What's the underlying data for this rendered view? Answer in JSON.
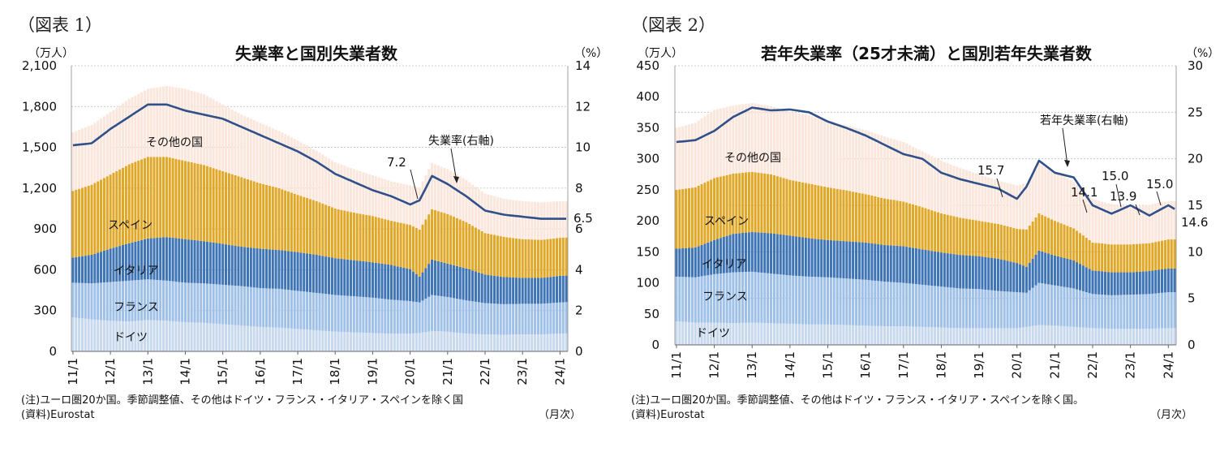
{
  "chart_data": [
    {
      "type": "bar",
      "stacked": true,
      "figure_label": "（図表 1）",
      "title": "失業率と国別失業者数",
      "left_unit": "（万人）",
      "right_unit": "（%）",
      "x_unit": "（月次）",
      "x_tick_labels": [
        "11/1",
        "12/1",
        "13/1",
        "14/1",
        "15/1",
        "16/1",
        "17/1",
        "18/1",
        "19/1",
        "20/1",
        "21/1",
        "22/1",
        "23/1",
        "24/1"
      ],
      "ylim": [
        0,
        2100
      ],
      "y_ticks": [
        0,
        300,
        600,
        900,
        1200,
        1500,
        1800,
        2100
      ],
      "y_tick_labels": [
        "0",
        "300",
        "600",
        "900",
        "1,200",
        "1,500",
        "1,800",
        "2,100"
      ],
      "y2lim": [
        0,
        14
      ],
      "y2_ticks": [
        0,
        2,
        4,
        6,
        8,
        10,
        12,
        14
      ],
      "y2_tick_labels": [
        "0",
        "2",
        "4",
        "6",
        "8",
        "10",
        "12",
        "14"
      ],
      "series_labels": [
        "ドイツ",
        "フランス",
        "イタリア",
        "スペイン",
        "その他の国"
      ],
      "colors": [
        "#c8d9ee",
        "#9fc1e8",
        "#3f74b5",
        "#e0a829",
        "#fbe6dc"
      ],
      "line_color": "#30508a",
      "line_label": "失業率(右軸)",
      "point_labels": [
        "7.2",
        "6.5"
      ],
      "keys": {
        "x": [
          "2011-01",
          "2011-07",
          "2012-01",
          "2012-07",
          "2013-01",
          "2013-07",
          "2014-01",
          "2014-07",
          "2015-01",
          "2015-07",
          "2016-01",
          "2016-07",
          "2017-01",
          "2017-07",
          "2018-01",
          "2018-07",
          "2019-01",
          "2019-07",
          "2020-01",
          "2020-04",
          "2020-08",
          "2021-01",
          "2021-07",
          "2022-01",
          "2022-07",
          "2023-01",
          "2023-07",
          "2024-01",
          "2024-03"
        ],
        "germany": [
          250,
          235,
          225,
          220,
          230,
          225,
          215,
          210,
          200,
          190,
          180,
          175,
          165,
          155,
          145,
          140,
          135,
          130,
          130,
          135,
          150,
          145,
          130,
          125,
          122,
          125,
          125,
          130,
          132
        ],
        "france": [
          255,
          265,
          285,
          300,
          300,
          295,
          290,
          290,
          290,
          290,
          285,
          285,
          280,
          275,
          270,
          265,
          260,
          250,
          240,
          225,
          265,
          255,
          245,
          230,
          225,
          225,
          225,
          230,
          230
        ],
        "italy": [
          185,
          210,
          245,
          275,
          300,
          320,
          320,
          310,
          300,
          290,
          290,
          285,
          285,
          280,
          270,
          265,
          260,
          255,
          235,
          190,
          260,
          245,
          235,
          210,
          200,
          190,
          190,
          195,
          195
        ],
        "spain": [
          490,
          515,
          545,
          580,
          600,
          590,
          575,
          560,
          535,
          510,
          480,
          455,
          420,
          395,
          365,
          350,
          340,
          325,
          325,
          345,
          370,
          365,
          340,
          305,
          295,
          285,
          280,
          280,
          280
        ],
        "other": [
          430,
          440,
          460,
          480,
          500,
          520,
          530,
          520,
          490,
          460,
          445,
          420,
          400,
          370,
          340,
          320,
          300,
          290,
          290,
          310,
          340,
          330,
          310,
          290,
          280,
          280,
          275,
          270,
          265
        ],
        "rate": [
          10.1,
          10.2,
          10.9,
          11.5,
          12.1,
          12.1,
          11.8,
          11.6,
          11.4,
          11.0,
          10.6,
          10.2,
          9.8,
          9.3,
          8.7,
          8.3,
          7.9,
          7.6,
          7.2,
          7.4,
          8.6,
          8.2,
          7.6,
          6.9,
          6.7,
          6.6,
          6.5,
          6.5,
          6.5
        ]
      }
    },
    {
      "type": "bar",
      "stacked": true,
      "figure_label": "（図表 2）",
      "title": "若年失業率（25才未満）と国別若年失業者数",
      "left_unit": "（万人）",
      "right_unit": "（%）",
      "x_unit": "（月次）",
      "x_tick_labels": [
        "11/1",
        "12/1",
        "13/1",
        "14/1",
        "15/1",
        "16/1",
        "17/1",
        "18/1",
        "19/1",
        "20/1",
        "21/1",
        "22/1",
        "23/1",
        "24/1"
      ],
      "ylim": [
        0,
        450
      ],
      "y_ticks": [
        0,
        50,
        100,
        150,
        200,
        250,
        300,
        350,
        400,
        450
      ],
      "y_tick_labels": [
        "0",
        "50",
        "100",
        "150",
        "200",
        "250",
        "300",
        "350",
        "400",
        "450"
      ],
      "y2lim": [
        0,
        30
      ],
      "y2_ticks": [
        0,
        5,
        10,
        15,
        20,
        25,
        30
      ],
      "y2_tick_labels": [
        "0",
        "5",
        "10",
        "15",
        "20",
        "25",
        "30"
      ],
      "series_labels": [
        "ドイツ",
        "フランス",
        "イタリア",
        "スペイン",
        "その他の国"
      ],
      "colors": [
        "#c8d9ee",
        "#9fc1e8",
        "#3f74b5",
        "#e0a829",
        "#fbe6dc"
      ],
      "line_color": "#30508a",
      "line_label": "若年失業率(右軸)",
      "point_labels": [
        "15.7",
        "14.1",
        "15.0",
        "13.9",
        "15.0",
        "14.6"
      ],
      "keys": {
        "x": [
          "2011-01",
          "2011-07",
          "2012-01",
          "2012-07",
          "2013-01",
          "2013-07",
          "2014-01",
          "2014-07",
          "2015-01",
          "2015-07",
          "2016-01",
          "2016-07",
          "2017-01",
          "2017-07",
          "2018-01",
          "2018-07",
          "2019-01",
          "2019-07",
          "2020-01",
          "2020-04",
          "2020-08",
          "2021-01",
          "2021-07",
          "2022-01",
          "2022-07",
          "2023-01",
          "2023-07",
          "2024-01",
          "2024-03"
        ],
        "germany": [
          38,
          36,
          36,
          35,
          36,
          35,
          34,
          33,
          33,
          32,
          31,
          30,
          30,
          29,
          28,
          27,
          27,
          27,
          27,
          29,
          32,
          31,
          29,
          27,
          26,
          26,
          26,
          27,
          27
        ],
        "france": [
          72,
          73,
          78,
          82,
          82,
          80,
          78,
          77,
          76,
          75,
          74,
          72,
          70,
          68,
          66,
          64,
          63,
          60,
          58,
          55,
          68,
          65,
          62,
          55,
          54,
          55,
          56,
          58,
          58
        ],
        "italy": [
          45,
          48,
          55,
          62,
          64,
          65,
          64,
          62,
          60,
          60,
          60,
          59,
          59,
          57,
          55,
          54,
          53,
          52,
          47,
          42,
          52,
          48,
          45,
          38,
          37,
          36,
          37,
          38,
          38
        ],
        "spain": [
          95,
          97,
          100,
          97,
          97,
          95,
          90,
          88,
          85,
          82,
          78,
          75,
          72,
          68,
          63,
          60,
          57,
          56,
          55,
          60,
          60,
          56,
          52,
          45,
          45,
          45,
          45,
          47,
          47
        ],
        "other": [
          100,
          104,
          110,
          110,
          111,
          110,
          110,
          110,
          108,
          105,
          103,
          100,
          96,
          90,
          85,
          80,
          75,
          70,
          70,
          75,
          80,
          80,
          75,
          70,
          65,
          60,
          62,
          62,
          62
        ],
        "rate": [
          21.8,
          22.0,
          23.0,
          24.5,
          25.5,
          25.2,
          25.3,
          25.0,
          24.0,
          23.3,
          22.5,
          21.5,
          20.5,
          20.0,
          18.5,
          17.8,
          17.3,
          16.8,
          15.7,
          17.0,
          19.8,
          18.5,
          18.0,
          15.0,
          14.1,
          15.0,
          13.9,
          15.0,
          14.6
        ]
      }
    }
  ],
  "notes": {
    "left_note": "(注)ユーロ圏20か国。季節調整値、その他はドイツ・フランス・イタリア・スペインを除く国",
    "left_source": "(資料)Eurostat",
    "right_note": "(注)ユーロ圏20か国。季節調整値、その他はドイツ・フランス・イタリア・スペインを除く国。",
    "right_source": "(資料)Eurostat"
  }
}
